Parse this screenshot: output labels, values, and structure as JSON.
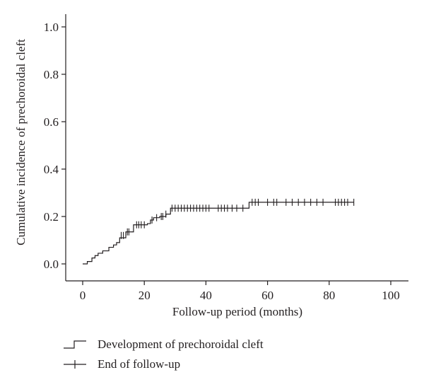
{
  "chart_data": {
    "type": "line",
    "title": "",
    "xlabel": "Follow-up period (months)",
    "ylabel": "Cumulative incidence of prechoroidal cleft",
    "xlim": [
      0,
      100
    ],
    "ylim": [
      0,
      1.0
    ],
    "x_ticks": [
      "0",
      "20",
      "40",
      "60",
      "80",
      "100"
    ],
    "y_ticks": [
      "0.0",
      "0.2",
      "0.4",
      "0.6",
      "0.8",
      "1.0"
    ],
    "grid": false,
    "legend_position": "bottom-left",
    "series": [
      {
        "name": "Development of prechoroidal cleft",
        "style": "step",
        "x": [
          0,
          1.5,
          3,
          4,
          5,
          6.5,
          8.5,
          10,
          11,
          12,
          14,
          16.5,
          21,
          22,
          23,
          25,
          27,
          28.5,
          54,
          88
        ],
        "y": [
          0.0,
          0.01,
          0.025,
          0.035,
          0.045,
          0.055,
          0.07,
          0.08,
          0.09,
          0.11,
          0.135,
          0.165,
          0.17,
          0.185,
          0.195,
          0.2,
          0.21,
          0.235,
          0.26,
          0.26
        ]
      },
      {
        "name": "End of follow-up",
        "style": "censor",
        "x": [
          12.5,
          13.2,
          14.5,
          15,
          17.5,
          18.2,
          19,
          20,
          22.5,
          24,
          25.5,
          26,
          27,
          29,
          30,
          31,
          32,
          33,
          34,
          35,
          36,
          37,
          38,
          39,
          40,
          41,
          44,
          45,
          46,
          47,
          48.5,
          50,
          52,
          55,
          56,
          57,
          60,
          62,
          63,
          66,
          68,
          70,
          72,
          74,
          76,
          78,
          82,
          83,
          84,
          85,
          86,
          88
        ],
        "y": [
          0.12,
          0.12,
          0.135,
          0.135,
          0.165,
          0.165,
          0.165,
          0.165,
          0.185,
          0.195,
          0.2,
          0.2,
          0.21,
          0.235,
          0.235,
          0.235,
          0.235,
          0.235,
          0.235,
          0.235,
          0.235,
          0.235,
          0.235,
          0.235,
          0.235,
          0.235,
          0.235,
          0.235,
          0.235,
          0.235,
          0.235,
          0.235,
          0.235,
          0.26,
          0.26,
          0.26,
          0.26,
          0.26,
          0.26,
          0.26,
          0.26,
          0.26,
          0.26,
          0.26,
          0.26,
          0.26,
          0.26,
          0.26,
          0.26,
          0.26,
          0.26,
          0.26
        ]
      }
    ]
  },
  "legend": {
    "items": [
      {
        "label": "Development of prechoroidal cleft",
        "symbol": "step"
      },
      {
        "label": "End of follow-up",
        "symbol": "censor"
      }
    ]
  },
  "colors": {
    "ink": "#231f20",
    "background": "#ffffff"
  }
}
